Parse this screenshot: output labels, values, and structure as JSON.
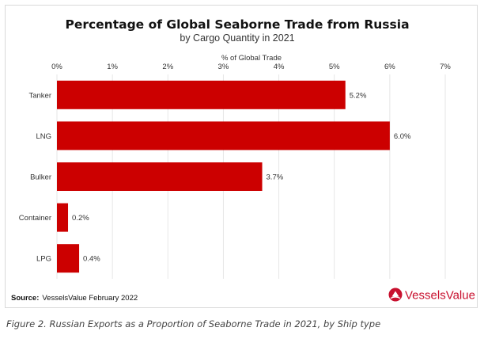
{
  "chart_data": {
    "type": "bar",
    "orientation": "horizontal",
    "title": "Percentage of Global Seaborne Trade from Russia",
    "subtitle": "by Cargo Quantity in 2021",
    "xlabel": "% of Global Trade",
    "ylabel": "",
    "xlim": [
      0,
      7
    ],
    "ticks": [
      "0%",
      "1%",
      "2%",
      "3%",
      "4%",
      "5%",
      "6%",
      "7%"
    ],
    "tick_values": [
      0,
      1,
      2,
      3,
      4,
      5,
      6,
      7
    ],
    "x_axis_position": "top",
    "grid": true,
    "categories": [
      "Tanker",
      "LNG",
      "Bulker",
      "Container",
      "LPG"
    ],
    "values": [
      5.2,
      6.0,
      3.7,
      0.2,
      0.4
    ],
    "data_labels": [
      "5.2%",
      "6.0%",
      "3.7%",
      "0.2%",
      "0.4%"
    ],
    "bar_color": "#cc0000"
  },
  "source": {
    "prefix": "Source:",
    "text": "VesselsValue February 2022"
  },
  "logo": {
    "text": "VesselsValue",
    "color": "#c8102e"
  },
  "caption": "Figure 2. Russian Exports as a Proportion of Seaborne Trade in 2021, by Ship type"
}
